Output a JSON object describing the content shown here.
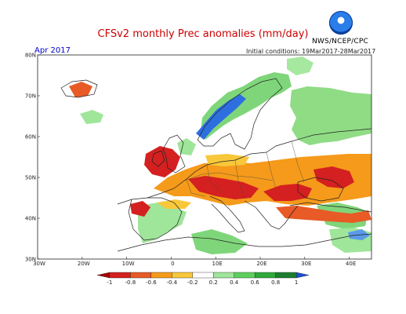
{
  "title": "CFSv2 monthly Prec anomalies (mm/day)",
  "agency": "NWS/NCEP/CPC",
  "month_label": "Apr 2017",
  "init_text": "Initial conditions: 19Mar2017-28Mar2017",
  "lat_ticks": [
    "80N",
    "70N",
    "60N",
    "50N",
    "40N",
    "30N"
  ],
  "lon_ticks": [
    "30W",
    "20W",
    "10W",
    "0",
    "10E",
    "20E",
    "30E",
    "40E"
  ],
  "colorbar": {
    "labels": [
      "-1",
      "-0.8",
      "-0.6",
      "-0.4",
      "-0.2",
      "0.2",
      "0.4",
      "0.6",
      "0.8",
      "1"
    ],
    "colors": [
      "#a50000",
      "#d42020",
      "#e85a26",
      "#f59a1a",
      "#f8c83a",
      "#ffffff",
      "#9fe59a",
      "#5ccf5c",
      "#2fa93a",
      "#1c7d2e",
      "#1a4fd6"
    ]
  }
}
